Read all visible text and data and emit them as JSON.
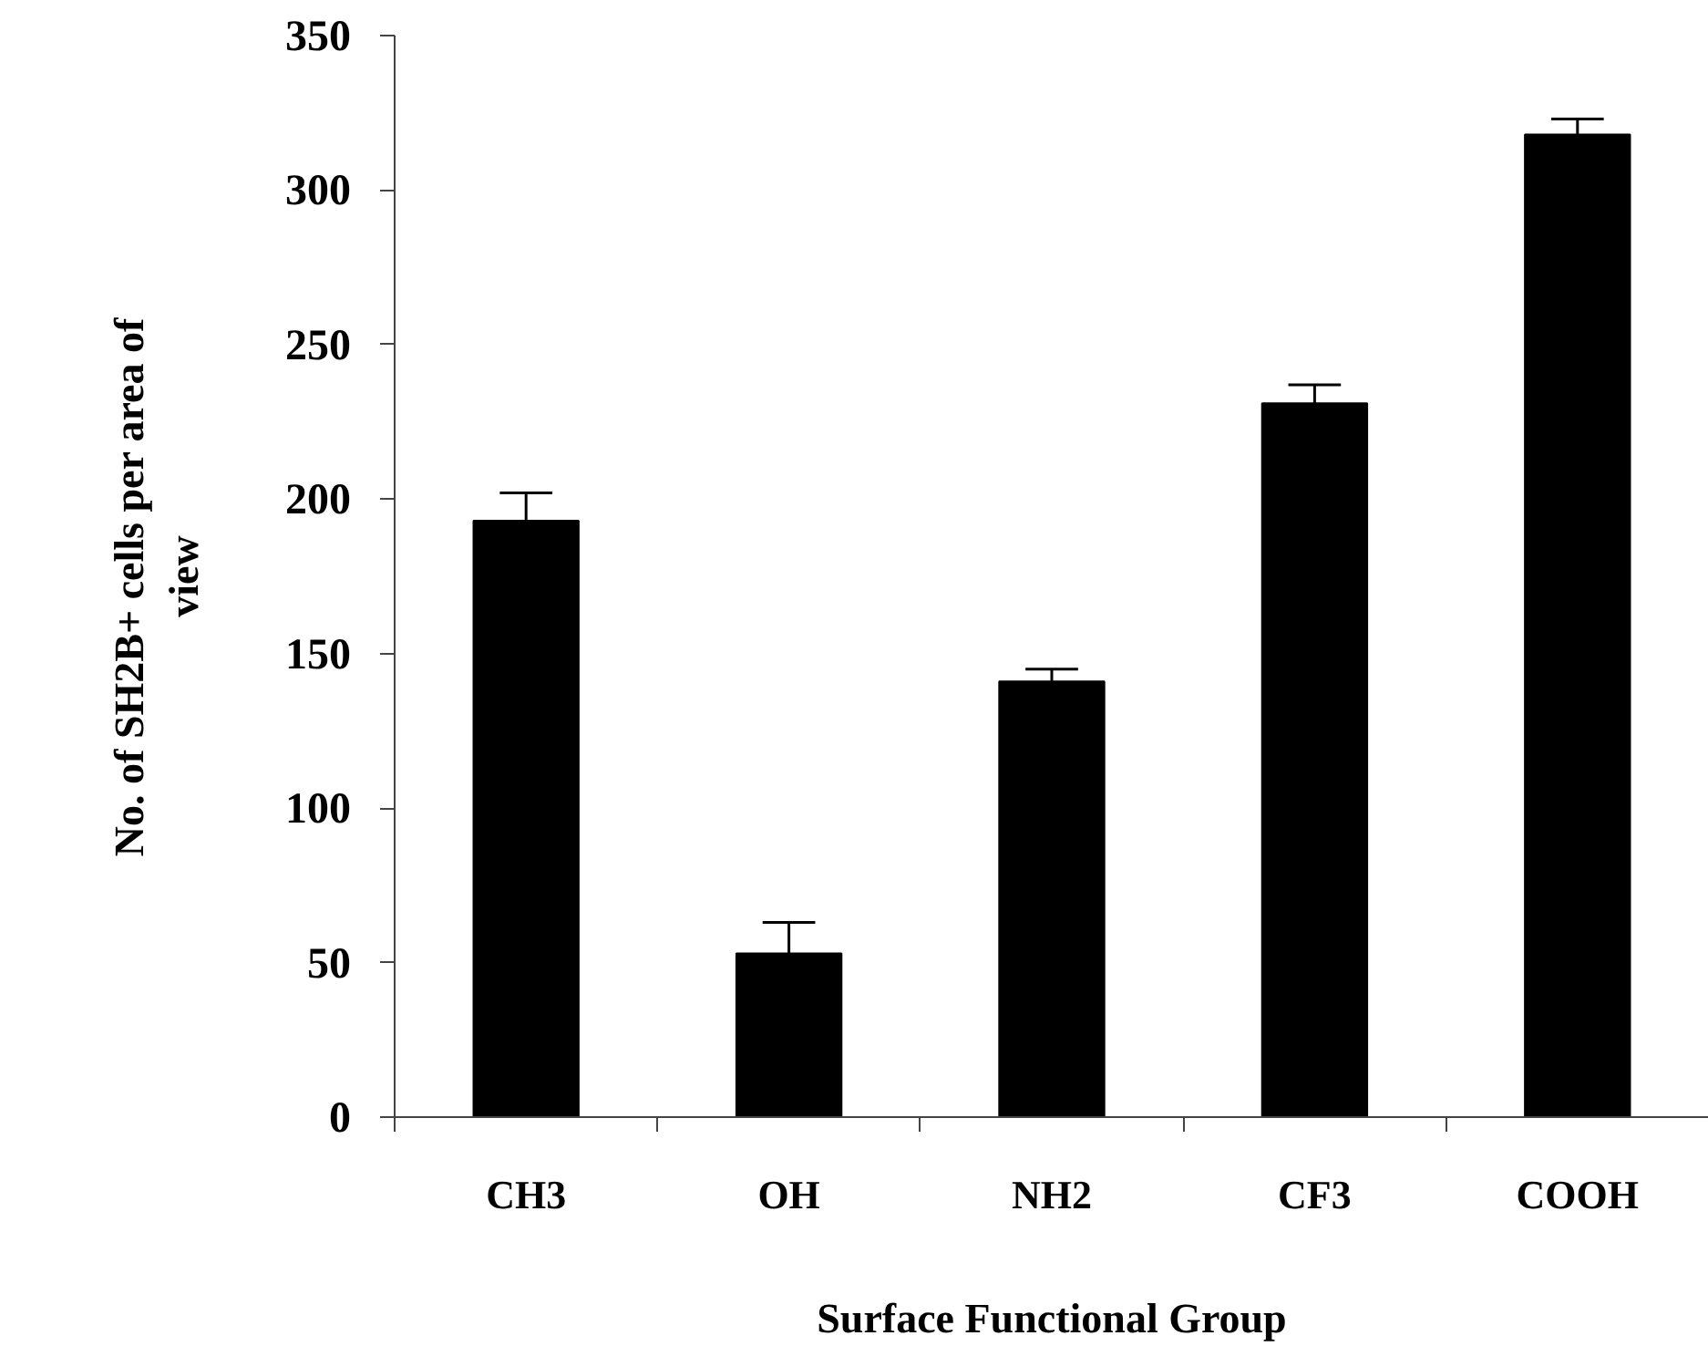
{
  "chart_data": {
    "type": "bar",
    "xlabel": "Surface Functional Group",
    "ylabel": "No. of  SH2B+ cells  per area of view",
    "categories": [
      "CH3",
      "OH",
      "NH2",
      "CF3",
      "COOH"
    ],
    "values": [
      193,
      53,
      141,
      231,
      318
    ],
    "errors": [
      [
        193,
        202
      ],
      [
        53,
        63
      ],
      [
        141,
        145
      ],
      [
        231,
        237
      ],
      [
        318,
        323
      ]
    ],
    "color": "#000000",
    "ylim": [
      0,
      350
    ],
    "yticks": [
      0,
      50,
      100,
      150,
      200,
      250,
      300,
      350
    ],
    "grid": false
  }
}
